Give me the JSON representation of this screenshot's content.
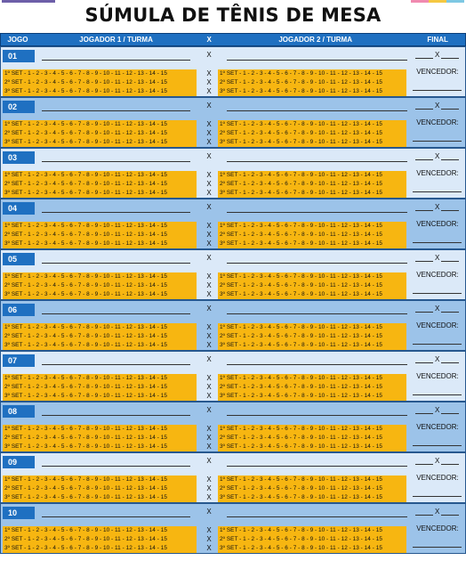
{
  "document": {
    "title": "SÚMULA DE TÊNIS DE MESA"
  },
  "colors": {
    "header_blue": "#1f70c1",
    "row_light": "#dbe9f8",
    "row_dark": "#9cc3e9",
    "set_yellow": "#f7b611"
  },
  "header": {
    "jogo": "JOGO",
    "player1": "JOGADOR 1 / TURMA",
    "x": "X",
    "player2": "JOGADOR 2 / TURMA",
    "final": "FINAL"
  },
  "sets": {
    "p1": [
      "1º SET - 1 - 2 - 3 - 4 - 5 - 6 - 7 - 8 - 9 - 10 - 11 - 12 - 13 - 14 - 15",
      "2º SET - 1 - 2 - 3 - 4 - 5 - 6 - 7 - 8 - 9 - 10 - 11 - 12 - 13 - 14 - 15",
      "3º SET - 1 - 2 - 3 - 4 - 5 - 6 - 7 - 8 - 9 - 10 - 11 - 12 - 13 - 14 - 15"
    ],
    "p2": [
      "1º SET - 1 - 2 - 3 - 4 - 5 - 6 - 7 - 8 - 9 - 10 - 11 - 12 - 13 - 14 - 15",
      "2º SET - 1 - 2 - 3 - 4 - 5 - 6 - 7 - 8 - 9 - 10 - 11 - 12 - 13 - 14 - 15",
      "3º SET - 1 - 2 - 3 - 4 - 5 - 6 - 7 - 8 - 9 - 10 - 11 - 12 - 13 - 14 - 15"
    ]
  },
  "vs_mark": "X",
  "winner_label": "VENCEDOR:",
  "matches": [
    {
      "number": "01"
    },
    {
      "number": "02"
    },
    {
      "number": "03"
    },
    {
      "number": "04"
    },
    {
      "number": "05"
    },
    {
      "number": "06"
    },
    {
      "number": "07"
    },
    {
      "number": "08"
    },
    {
      "number": "09"
    },
    {
      "number": "10"
    }
  ]
}
